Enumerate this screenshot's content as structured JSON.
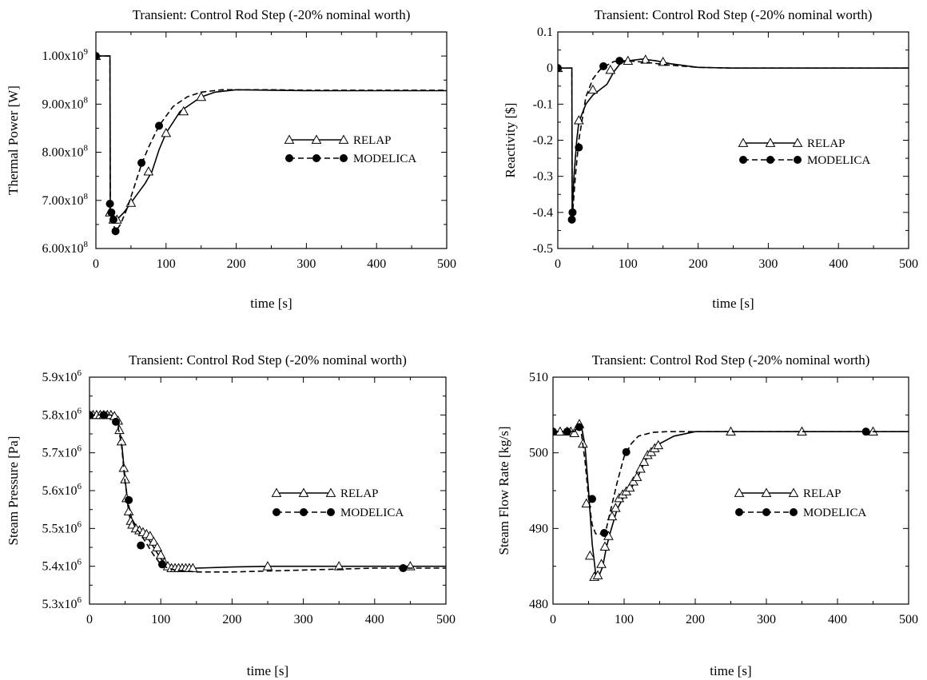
{
  "chart_data": [
    {
      "type": "line",
      "title": "Transient: Control Rod Step (-20% nominal worth)",
      "xlabel": "time [s]",
      "ylabel": "Thermal Power [W]",
      "xlim": [
        0,
        500
      ],
      "ylim": [
        600000000.0,
        1050000000.0
      ],
      "xticks": [
        0,
        100,
        200,
        300,
        400,
        500
      ],
      "xtick_labels": [
        "0",
        "100",
        "200",
        "300",
        "400",
        "500"
      ],
      "yticks": [
        600000000.0,
        700000000.0,
        800000000.0,
        900000000.0,
        1000000000.0
      ],
      "ytick_labels": [
        {
          "m": "6.00x10",
          "e": "8"
        },
        {
          "m": "7.00x10",
          "e": "8"
        },
        {
          "m": "8.00x10",
          "e": "8"
        },
        {
          "m": "9.00x10",
          "e": "8"
        },
        {
          "m": "1.00x10",
          "e": "9"
        }
      ],
      "legend_position": "right-middle",
      "grid": false,
      "series": [
        {
          "name": "RELAP",
          "style": "solid",
          "marker": "triangle-open",
          "x": [
            0,
            20,
            20.5,
            22,
            25,
            30,
            40,
            50,
            60,
            70,
            80,
            90,
            100,
            120,
            150,
            170,
            200,
            250,
            300,
            400,
            500
          ],
          "y": [
            1000000000.0,
            1000000000.0,
            680000000.0,
            660000000.0,
            658000000.0,
            660000000.0,
            675000000.0,
            695000000.0,
            715000000.0,
            735000000.0,
            760000000.0,
            805000000.0,
            840000000.0,
            885000000.0,
            915000000.0,
            925000000.0,
            930000000.0,
            929000000.0,
            928000000.0,
            928000000.0,
            928000000.0
          ],
          "markers_x": [
            0,
            20,
            25,
            30,
            50,
            75,
            100,
            125,
            150
          ],
          "markers_y": [
            1000000000.0,
            675000000.0,
            660000000.0,
            660000000.0,
            695000000.0,
            760000000.0,
            840000000.0,
            885000000.0,
            915000000.0
          ]
        },
        {
          "name": "MODELICA",
          "style": "dashed",
          "marker": "circle-filled",
          "x": [
            0,
            20,
            20.5,
            22,
            25,
            28,
            35,
            45,
            55,
            65,
            75,
            90,
            110,
            130,
            150,
            180,
            200,
            250,
            300,
            400,
            500
          ],
          "y": [
            1000000000.0,
            1000000000.0,
            690000000.0,
            670000000.0,
            650000000.0,
            635000000.0,
            650000000.0,
            685000000.0,
            730000000.0,
            775000000.0,
            810000000.0,
            855000000.0,
            895000000.0,
            915000000.0,
            925000000.0,
            930000000.0,
            930000000.0,
            930000000.0,
            929000000.0,
            929000000.0,
            929000000.0
          ],
          "markers_x": [
            0,
            20,
            22,
            25,
            28,
            65,
            90
          ],
          "markers_y": [
            1000000000.0,
            693000000.0,
            675000000.0,
            660000000.0,
            636000000.0,
            778000000.0,
            855000000.0
          ]
        }
      ]
    },
    {
      "type": "line",
      "title": "Transient: Control Rod Step (-20% nominal worth)",
      "xlabel": "time [s]",
      "ylabel": "Reactivity [$]",
      "xlim": [
        0,
        500
      ],
      "ylim": [
        -0.5,
        0.1
      ],
      "xticks": [
        0,
        100,
        200,
        300,
        400,
        500
      ],
      "xtick_labels": [
        "0",
        "100",
        "200",
        "300",
        "400",
        "500"
      ],
      "yticks": [
        -0.5,
        -0.4,
        -0.3,
        -0.2,
        -0.1,
        0,
        0.1
      ],
      "ytick_labels": [
        {
          "m": "-0.5",
          "e": ""
        },
        {
          "m": "-0.4",
          "e": ""
        },
        {
          "m": "-0.3",
          "e": ""
        },
        {
          "m": "-0.2",
          "e": ""
        },
        {
          "m": "-0.1",
          "e": ""
        },
        {
          "m": "0",
          "e": ""
        },
        {
          "m": "0.1",
          "e": ""
        }
      ],
      "legend_position": "right-middle",
      "grid": false,
      "series": [
        {
          "name": "RELAP",
          "style": "solid",
          "marker": "triangle-open",
          "x": [
            0,
            20,
            20.5,
            23,
            27,
            30,
            40,
            50,
            60,
            70,
            80,
            90,
            100,
            120,
            140,
            160,
            200,
            250,
            300,
            400,
            500
          ],
          "y": [
            0,
            0,
            -0.4,
            -0.3,
            -0.2,
            -0.15,
            -0.1,
            -0.075,
            -0.06,
            -0.045,
            -0.01,
            0.015,
            0.02,
            0.025,
            0.02,
            0.012,
            0.002,
            0,
            0,
            0,
            0
          ],
          "markers_x": [
            0,
            30,
            50,
            75,
            100,
            125,
            150
          ],
          "markers_y": [
            0,
            -0.145,
            -0.06,
            -0.005,
            0.02,
            0.023,
            0.017
          ]
        },
        {
          "name": "MODELICA",
          "style": "dashed",
          "marker": "circle-filled",
          "x": [
            0,
            20,
            20.5,
            22,
            25,
            30,
            40,
            50,
            60,
            70,
            80,
            90,
            100,
            130,
            160,
            200,
            250,
            300,
            400,
            500
          ],
          "y": [
            0,
            0,
            -0.42,
            -0.38,
            -0.3,
            -0.2,
            -0.08,
            -0.03,
            -0.005,
            0.008,
            0.018,
            0.02,
            0.02,
            0.015,
            0.008,
            0.002,
            0,
            0,
            0,
            0
          ],
          "markers_x": [
            0,
            20,
            21,
            30,
            65,
            88
          ],
          "markers_y": [
            0,
            -0.42,
            -0.4,
            -0.22,
            0.005,
            0.02
          ]
        }
      ]
    },
    {
      "type": "line",
      "title": "Transient: Control Rod Step (-20% nominal worth)",
      "xlabel": "time [s]",
      "ylabel": "Steam Pressure [Pa]",
      "xlim": [
        0,
        500
      ],
      "ylim": [
        5300000.0,
        5900000.0
      ],
      "xticks": [
        0,
        100,
        200,
        300,
        400,
        500
      ],
      "xtick_labels": [
        "0",
        "100",
        "200",
        "300",
        "400",
        "500"
      ],
      "yticks": [
        5300000.0,
        5400000.0,
        5500000.0,
        5600000.0,
        5700000.0,
        5800000.0,
        5900000.0
      ],
      "ytick_labels": [
        {
          "m": "5.3x10",
          "e": "6"
        },
        {
          "m": "5.4x10",
          "e": "6"
        },
        {
          "m": "5.5x10",
          "e": "6"
        },
        {
          "m": "5.6x10",
          "e": "6"
        },
        {
          "m": "5.7x10",
          "e": "6"
        },
        {
          "m": "5.8x10",
          "e": "6"
        },
        {
          "m": "5.9x10",
          "e": "6"
        }
      ],
      "legend_position": "right-middle",
      "grid": false,
      "series": [
        {
          "name": "RELAP",
          "style": "solid",
          "marker": "triangle-open",
          "x": [
            0,
            30,
            35,
            40,
            45,
            50,
            55,
            60,
            70,
            80,
            90,
            100,
            110,
            120,
            150,
            200,
            250,
            300,
            400,
            500
          ],
          "y": [
            5800000.0,
            5800000.0,
            5795000.0,
            5780000.0,
            5730000.0,
            5630000.0,
            5540000.0,
            5505000.0,
            5495000.0,
            5480000.0,
            5450000.0,
            5420000.0,
            5400000.0,
            5395000.0,
            5395000.0,
            5398000.0,
            5400000.0,
            5400000.0,
            5400000.0,
            5400000.0
          ],
          "markers_x": [
            0,
            5,
            10,
            15,
            20,
            25,
            30,
            35,
            40,
            42,
            45,
            48,
            50,
            52,
            55,
            58,
            60,
            65,
            70,
            75,
            80,
            85,
            90,
            95,
            100,
            105,
            110,
            115,
            120,
            125,
            130,
            135,
            140,
            145,
            250,
            350,
            450
          ],
          "markers_y": [
            5800000.0,
            5800000.0,
            5800000.0,
            5800000.0,
            5800000.0,
            5800000.0,
            5800000.0,
            5797000.0,
            5785000.0,
            5760000.0,
            5730000.0,
            5660000.0,
            5630000.0,
            5580000.0,
            5545000.0,
            5520000.0,
            5510000.0,
            5500000.0,
            5495000.0,
            5490000.0,
            5485000.0,
            5480000.0,
            5465000.0,
            5450000.0,
            5430000.0,
            5410000.0,
            5400000.0,
            5395000.0,
            5395000.0,
            5395000.0,
            5395000.0,
            5395000.0,
            5395000.0,
            5395000.0,
            5400000.0,
            5400000.0,
            5400000.0
          ]
        },
        {
          "name": "MODELICA",
          "style": "dashed",
          "marker": "circle-filled",
          "x": [
            0,
            30,
            35,
            40,
            45,
            50,
            55,
            60,
            65,
            70,
            75,
            80,
            90,
            100,
            110,
            120,
            150,
            200,
            300,
            400,
            500
          ],
          "y": [
            5800000.0,
            5800000.0,
            5790000.0,
            5770000.0,
            5720000.0,
            5620000.0,
            5560000.0,
            5520000.0,
            5500000.0,
            5490000.0,
            5475000.0,
            5460000.0,
            5430000.0,
            5405000.0,
            5395000.0,
            5390000.0,
            5385000.0,
            5385000.0,
            5390000.0,
            5395000.0,
            5395000.0
          ],
          "markers_x": [
            0,
            20,
            37,
            55,
            72,
            102,
            440
          ],
          "markers_y": [
            5800000.0,
            5800000.0,
            5782000.0,
            5575000.0,
            5455000.0,
            5405000.0,
            5395000.0
          ]
        }
      ]
    },
    {
      "type": "line",
      "title": "Transient: Control Rod Step (-20% nominal worth)",
      "xlabel": "time [s]",
      "ylabel": "Steam Flow Rate [kg/s]",
      "xlim": [
        0,
        500
      ],
      "ylim": [
        480,
        510
      ],
      "xticks": [
        0,
        100,
        200,
        300,
        400,
        500
      ],
      "xtick_labels": [
        "0",
        "100",
        "200",
        "300",
        "400",
        "500"
      ],
      "yticks": [
        480,
        490,
        500,
        510
      ],
      "ytick_labels": [
        {
          "m": "480",
          "e": ""
        },
        {
          "m": "490",
          "e": ""
        },
        {
          "m": "500",
          "e": ""
        },
        {
          "m": "510",
          "e": ""
        }
      ],
      "legend_position": "right-middle",
      "grid": false,
      "series": [
        {
          "name": "RELAP",
          "style": "solid",
          "marker": "triangle-open",
          "x": [
            0,
            30,
            37,
            40,
            45,
            50,
            55,
            60,
            65,
            70,
            75,
            80,
            90,
            100,
            110,
            120,
            130,
            140,
            150,
            170,
            200,
            250,
            300,
            400,
            500
          ],
          "y": [
            502.8,
            502.8,
            503.7,
            503.5,
            501,
            495,
            488,
            484,
            483.8,
            485,
            487.5,
            489.3,
            492.5,
            494.3,
            495.3,
            497,
            499,
            500.2,
            501.2,
            502.2,
            502.8,
            502.8,
            502.8,
            502.8,
            502.8
          ],
          "markers_x": [
            0,
            10,
            20,
            25,
            30,
            37,
            42,
            47,
            52,
            58,
            63,
            68,
            73,
            78,
            83,
            88,
            93,
            98,
            103,
            108,
            113,
            118,
            123,
            128,
            133,
            138,
            143,
            148,
            250,
            350,
            450
          ],
          "markers_y": [
            502.8,
            502.8,
            502.8,
            502.8,
            502.6,
            503.8,
            501.2,
            493.3,
            486.4,
            483.6,
            483.8,
            485.3,
            487.6,
            489,
            491.6,
            492.7,
            494,
            494.5,
            494.9,
            495.4,
            496.2,
            496.8,
            497.9,
            498.8,
            499.7,
            500.1,
            500.6,
            501,
            502.8,
            502.8,
            502.8
          ]
        },
        {
          "name": "MODELICA",
          "style": "dashed",
          "marker": "circle-filled",
          "x": [
            0,
            30,
            37,
            40,
            45,
            50,
            55,
            60,
            65,
            70,
            75,
            80,
            90,
            100,
            110,
            120,
            140,
            160,
            200,
            300,
            500
          ],
          "y": [
            502.8,
            502.8,
            503.4,
            502.5,
            499,
            494,
            490.5,
            489.3,
            489.2,
            489.4,
            490,
            492,
            496,
            499.5,
            501.2,
            502.2,
            502.7,
            502.8,
            502.8,
            502.8,
            502.8
          ],
          "markers_x": [
            0,
            20,
            37,
            55,
            72,
            103,
            440
          ],
          "markers_y": [
            502.8,
            502.8,
            503.4,
            493.9,
            489.4,
            500.1,
            502.8
          ]
        }
      ]
    }
  ]
}
